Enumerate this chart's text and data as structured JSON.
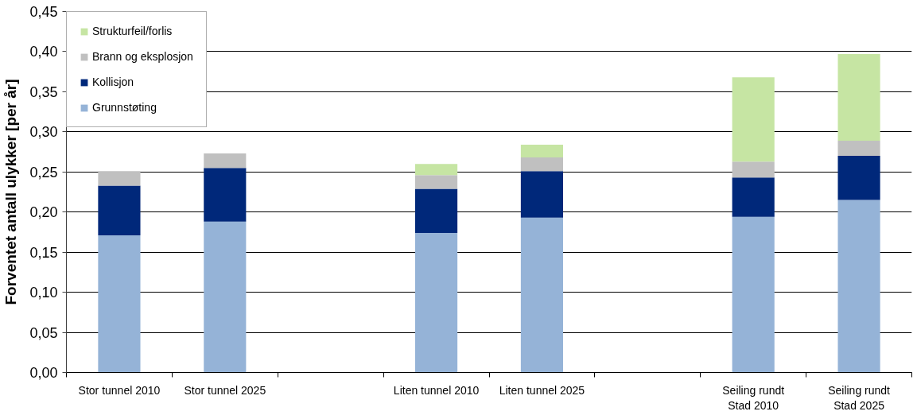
{
  "chart_data": {
    "type": "bar",
    "ylabel": "Forventet antall ulykker [per år]",
    "categories": [
      "Stor tunnel 2010",
      "Stor tunnel 2025",
      null,
      "Liten tunnel 2010",
      "Liten tunnel 2025",
      null,
      "Seiling rundt Stad 2010",
      "Seiling rundt Stad 2025"
    ],
    "series": [
      {
        "name": "Grunnstøting",
        "color": "#95b3d7",
        "values": [
          0.171,
          0.188,
          null,
          0.174,
          0.193,
          null,
          0.194,
          0.215
        ]
      },
      {
        "name": "Kollisjon",
        "color": "#00287a",
        "values": [
          0.062,
          0.067,
          null,
          0.055,
          0.058,
          null,
          0.049,
          0.055
        ]
      },
      {
        "name": "Brann og eksplosjon",
        "color": "#c0c0c0",
        "values": [
          0.018,
          0.018,
          null,
          0.017,
          0.017,
          null,
          0.02,
          0.019
        ]
      },
      {
        "name": "Strukturfeil/forlis",
        "color": "#c6e5a3",
        "values": [
          null,
          null,
          null,
          0.014,
          0.016,
          null,
          0.105,
          0.108
        ]
      }
    ],
    "stacked": true,
    "ylim": [
      0,
      0.45
    ],
    "yticks": [
      {
        "value": 0,
        "label": "0,00"
      },
      {
        "value": 0.05,
        "label": "0,05"
      },
      {
        "value": 0.1,
        "label": "0,10"
      },
      {
        "value": 0.15,
        "label": "0,15"
      },
      {
        "value": 0.2,
        "label": "0,20"
      },
      {
        "value": 0.25,
        "label": "0,25"
      },
      {
        "value": 0.3,
        "label": "0,30"
      },
      {
        "value": 0.35,
        "label": "0,35"
      },
      {
        "value": 0.4,
        "label": "0,40"
      },
      {
        "value": 0.45,
        "label": "0,45"
      }
    ],
    "grid": "y",
    "legend": "top left"
  }
}
